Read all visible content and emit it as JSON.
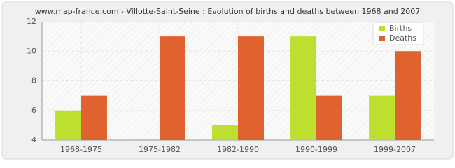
{
  "chart_data": {
    "type": "bar",
    "title": "www.map-france.com - Villotte-Saint-Seine : Evolution of births and deaths between 1968 and 2007",
    "categories": [
      "1968-1975",
      "1975-1982",
      "1982-1990",
      "1990-1999",
      "1999-2007"
    ],
    "series": [
      {
        "name": "Births",
        "color": "#bde030",
        "values": [
          6,
          4,
          5,
          11,
          7
        ]
      },
      {
        "name": "Deaths",
        "color": "#e0622f",
        "values": [
          7,
          11,
          11,
          7,
          10
        ]
      }
    ],
    "ylim": [
      4,
      12
    ],
    "yticks": [
      4,
      6,
      8,
      10,
      12
    ],
    "grid": true,
    "legend": "top-right"
  }
}
